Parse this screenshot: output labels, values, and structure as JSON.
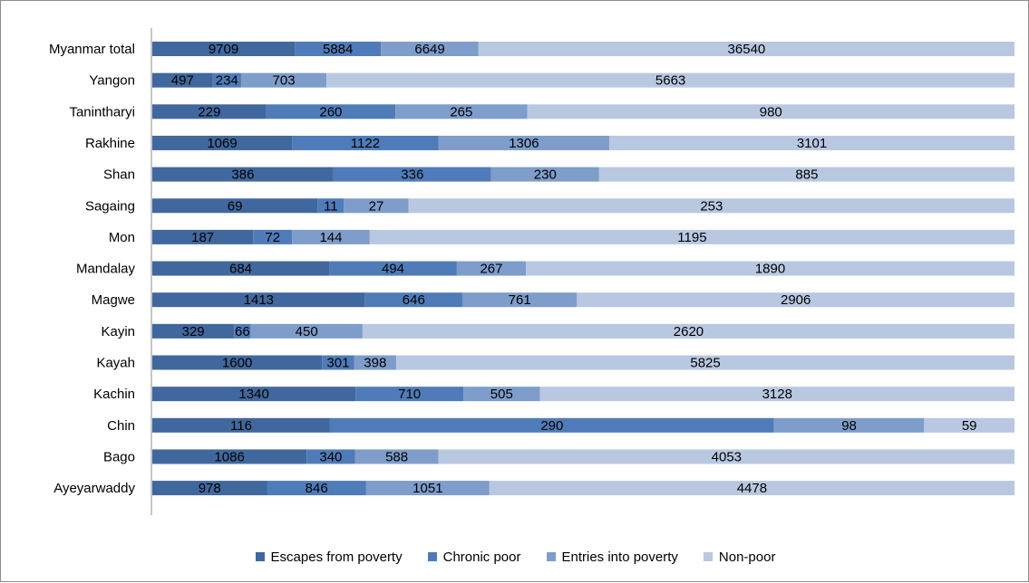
{
  "chart_data": {
    "type": "bar",
    "orientation": "horizontal",
    "stacking": "percent",
    "categories": [
      "Myanmar total",
      "Yangon",
      "Tanintharyi",
      "Rakhine",
      "Shan",
      "Sagaing",
      "Mon",
      "Mandalay",
      "Magwe",
      "Kayin",
      "Kayah",
      "Kachin",
      "Chin",
      "Bago",
      "Ayeyarwaddy"
    ],
    "series": [
      {
        "name": "Escapes from poverty",
        "color": "#41689e",
        "values": [
          9709,
          497,
          229,
          1069,
          386,
          69,
          187,
          684,
          1413,
          329,
          1600,
          1340,
          116,
          1086,
          978
        ]
      },
      {
        "name": "Chronic poor",
        "color": "#4f7cb8",
        "values": [
          5884,
          234,
          260,
          1122,
          336,
          11,
          72,
          494,
          646,
          66,
          301,
          710,
          290,
          340,
          846
        ]
      },
      {
        "name": "Entries into poverty",
        "color": "#7e9dcb",
        "values": [
          6649,
          703,
          265,
          1306,
          230,
          27,
          144,
          267,
          761,
          450,
          398,
          505,
          98,
          588,
          1051
        ]
      },
      {
        "name": "Non-poor",
        "color": "#b9c8e1",
        "values": [
          36540,
          5663,
          980,
          3101,
          885,
          253,
          1195,
          1890,
          2906,
          2620,
          5825,
          3128,
          59,
          4053,
          4478
        ]
      }
    ],
    "legend_position": "bottom",
    "grid": false
  }
}
